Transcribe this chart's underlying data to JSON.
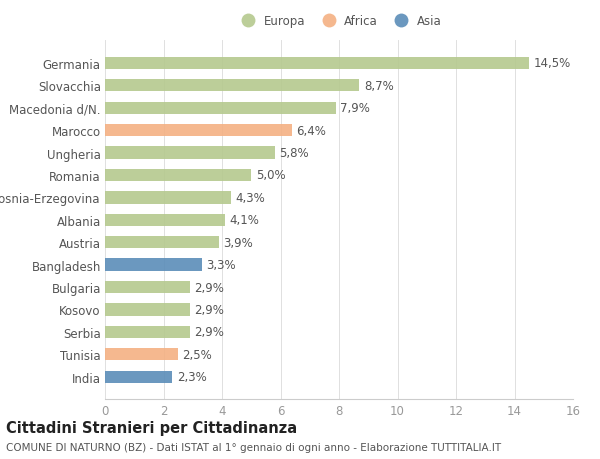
{
  "categories": [
    "India",
    "Tunisia",
    "Serbia",
    "Kosovo",
    "Bulgaria",
    "Bangladesh",
    "Austria",
    "Albania",
    "Bosnia-Erzegovina",
    "Romania",
    "Ungheria",
    "Marocco",
    "Macedonia d/N.",
    "Slovacchia",
    "Germania"
  ],
  "values": [
    2.3,
    2.5,
    2.9,
    2.9,
    2.9,
    3.3,
    3.9,
    4.1,
    4.3,
    5.0,
    5.8,
    6.4,
    7.9,
    8.7,
    14.5
  ],
  "labels": [
    "2,3%",
    "2,5%",
    "2,9%",
    "2,9%",
    "2,9%",
    "3,3%",
    "3,9%",
    "4,1%",
    "4,3%",
    "5,0%",
    "5,8%",
    "6,4%",
    "7,9%",
    "8,7%",
    "14,5%"
  ],
  "continents": [
    "Asia",
    "Africa",
    "Europa",
    "Europa",
    "Europa",
    "Asia",
    "Europa",
    "Europa",
    "Europa",
    "Europa",
    "Europa",
    "Africa",
    "Europa",
    "Europa",
    "Europa"
  ],
  "colors": {
    "Europa": "#b5c98e",
    "Africa": "#f4b183",
    "Asia": "#5b8db8"
  },
  "legend": [
    {
      "label": "Europa",
      "color": "#b5c98e"
    },
    {
      "label": "Africa",
      "color": "#f4b183"
    },
    {
      "label": "Asia",
      "color": "#5b8db8"
    }
  ],
  "xlim": [
    0,
    16
  ],
  "xticks": [
    0,
    2,
    4,
    6,
    8,
    10,
    12,
    14,
    16
  ],
  "title": "Cittadini Stranieri per Cittadinanza",
  "subtitle": "COMUNE DI NATURNO (BZ) - Dati ISTAT al 1° gennaio di ogni anno - Elaborazione TUTTITALIA.IT",
  "background_color": "#ffffff",
  "bar_height": 0.55,
  "label_fontsize": 8.5,
  "tick_fontsize": 8.5,
  "title_fontsize": 10.5,
  "subtitle_fontsize": 7.5
}
